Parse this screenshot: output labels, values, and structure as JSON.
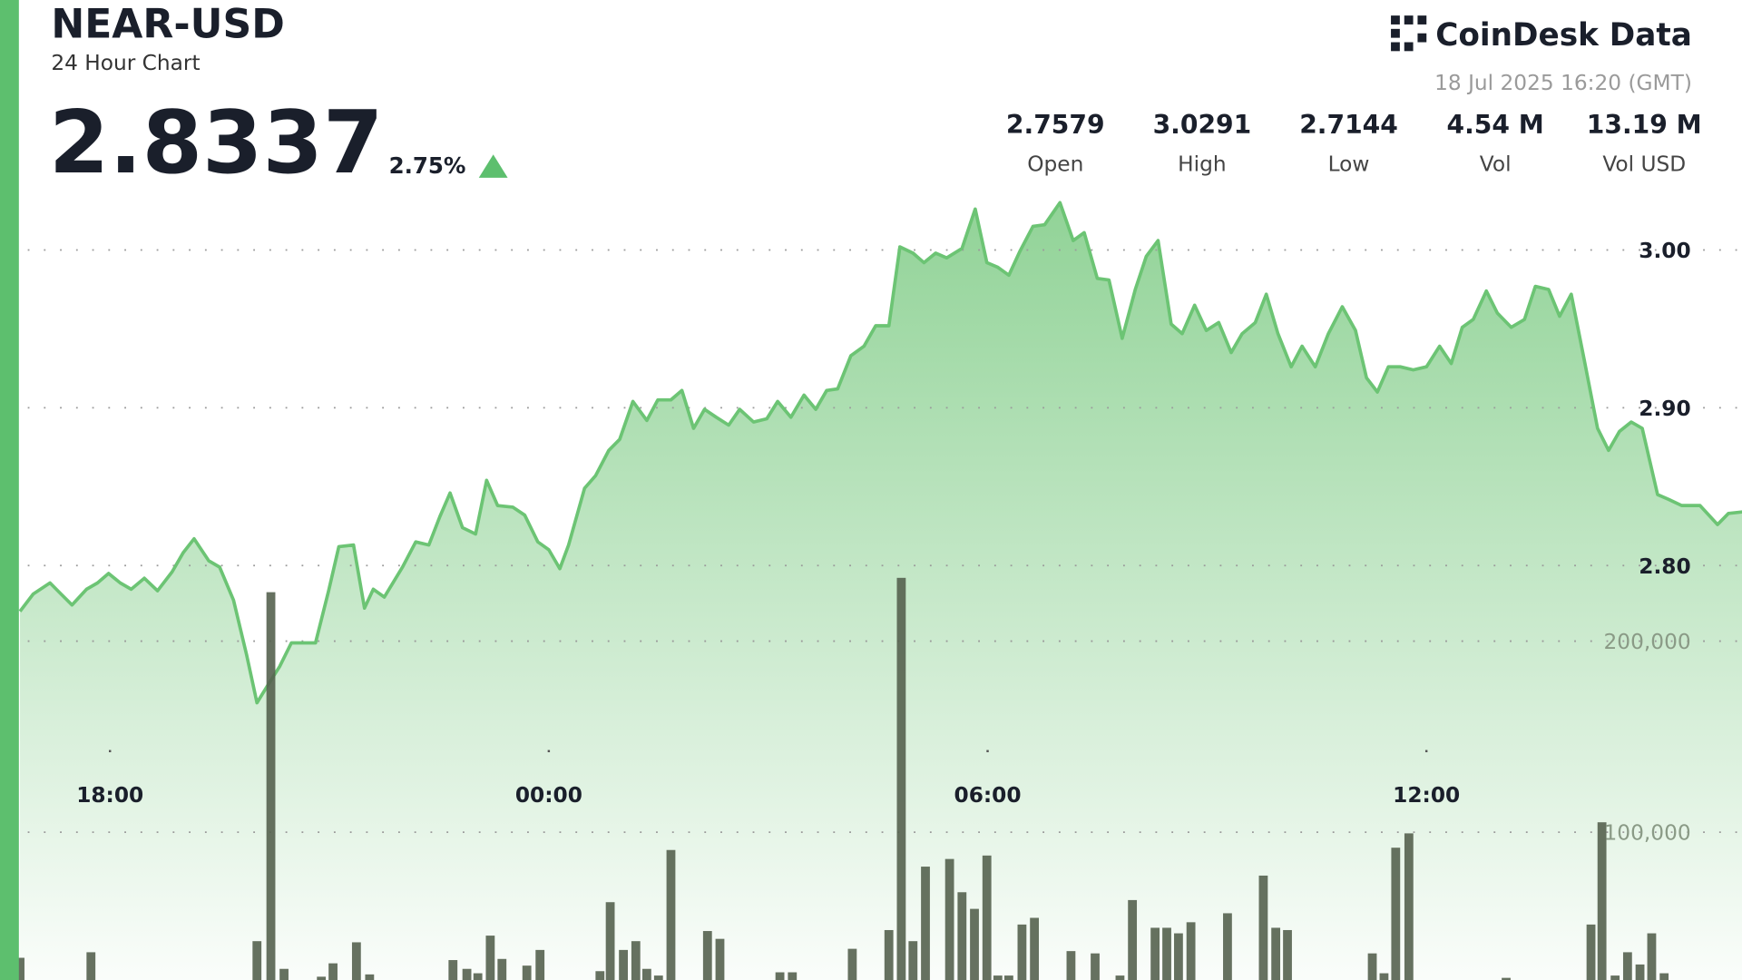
{
  "header": {
    "title": "NEAR-USD",
    "subtitle": "24 Hour Chart",
    "price": "2.8337",
    "change": "2.75%"
  },
  "brand": {
    "name": "CoinDesk Data",
    "timestamp": "18 Jul 2025 16:20 (GMT)"
  },
  "stats": [
    {
      "value": "2.7579",
      "label": "Open"
    },
    {
      "value": "3.0291",
      "label": "High"
    },
    {
      "value": "2.7144",
      "label": "Low"
    },
    {
      "value": "4.54 M",
      "label": "Vol"
    },
    {
      "value": "13.19 M",
      "label": "Vol USD"
    }
  ],
  "chart_data": [
    {
      "type": "area",
      "color": "#6cc474",
      "x": [
        16.77,
        16.95,
        17.18,
        17.33,
        17.48,
        17.68,
        17.83,
        17.98,
        18.14,
        18.29,
        18.47,
        18.65,
        18.85,
        19.0,
        19.15,
        19.35,
        19.5,
        19.69,
        19.87,
        20.01,
        20.17,
        20.32,
        20.48,
        20.81,
        20.99,
        21.13,
        21.33,
        21.48,
        21.6,
        21.75,
        22.0,
        22.18,
        22.36,
        22.51,
        22.65,
        22.82,
        23.0,
        23.15,
        23.3,
        23.51,
        23.67,
        23.85,
        24.0,
        24.15,
        24.27,
        24.49,
        24.64,
        24.82,
        24.97,
        25.15,
        25.34,
        25.49,
        25.67,
        25.82,
        25.98,
        26.13,
        26.29,
        26.46,
        26.61,
        26.8,
        26.98,
        27.13,
        27.31,
        27.49,
        27.65,
        27.8,
        27.95,
        28.13,
        28.31,
        28.47,
        28.65,
        28.8,
        28.98,
        29.13,
        29.29,
        29.44,
        29.65,
        29.83,
        29.99,
        30.14,
        30.29,
        30.44,
        30.62,
        30.78,
        30.99,
        31.17,
        31.32,
        31.5,
        31.66,
        31.84,
        32.02,
        32.17,
        32.33,
        32.51,
        32.66,
        32.83,
        32.99,
        33.16,
        33.33,
        33.48,
        33.66,
        33.81,
        33.97,
        34.15,
        34.3,
        34.48,
        34.66,
        34.85,
        35.03,
        35.18,
        35.33,
        35.48,
        35.64,
        35.82,
        36.0,
        36.18,
        36.34,
        36.49,
        36.64,
        36.82,
        36.97,
        37.16,
        37.34,
        37.49,
        37.67,
        37.82,
        37.98,
        38.16,
        38.34,
        38.49,
        38.64,
        38.8,
        38.95,
        39.16,
        39.31,
        39.49,
        39.74,
        39.98,
        40.13,
        40.32
      ],
      "values": [
        2.771,
        2.782,
        2.789,
        2.782,
        2.775,
        2.785,
        2.789,
        2.795,
        2.789,
        2.785,
        2.792,
        2.784,
        2.796,
        2.808,
        2.817,
        2.803,
        2.799,
        2.778,
        2.743,
        2.713,
        2.725,
        2.736,
        2.751,
        2.751,
        2.784,
        2.812,
        2.813,
        2.773,
        2.785,
        2.78,
        2.799,
        2.815,
        2.813,
        2.831,
        2.846,
        2.824,
        2.82,
        2.854,
        2.838,
        2.837,
        2.832,
        2.815,
        2.81,
        2.798,
        2.813,
        2.849,
        2.857,
        2.873,
        2.88,
        2.904,
        2.892,
        2.905,
        2.905,
        2.911,
        2.887,
        2.899,
        2.894,
        2.889,
        2.899,
        2.891,
        2.893,
        2.904,
        2.894,
        2.908,
        2.899,
        2.911,
        2.912,
        2.933,
        2.939,
        2.952,
        2.952,
        3.002,
        2.998,
        2.992,
        2.998,
        2.995,
        3.001,
        3.026,
        2.992,
        2.989,
        2.984,
        2.999,
        3.015,
        3.016,
        3.03,
        3.006,
        3.011,
        2.982,
        2.981,
        2.944,
        2.975,
        2.996,
        3.006,
        2.953,
        2.947,
        2.965,
        2.949,
        2.954,
        2.935,
        2.947,
        2.954,
        2.972,
        2.947,
        2.926,
        2.939,
        2.926,
        2.947,
        2.964,
        2.949,
        2.919,
        2.91,
        2.926,
        2.926,
        2.924,
        2.926,
        2.939,
        2.928,
        2.951,
        2.956,
        2.974,
        2.96,
        2.951,
        2.956,
        2.977,
        2.975,
        2.958,
        2.972,
        2.93,
        2.887,
        2.873,
        2.885,
        2.891,
        2.887,
        2.845,
        2.842,
        2.838,
        2.838,
        2.826,
        2.833,
        2.834
      ],
      "xlim": [
        16.75,
        40.33
      ],
      "xticks": [
        {
          "value": 18,
          "label": "18:00"
        },
        {
          "value": 24,
          "label": "00:00"
        },
        {
          "value": 30,
          "label": "06:00"
        },
        {
          "value": 36,
          "label": "12:00"
        }
      ],
      "ylim": [
        2.6,
        3.05
      ],
      "yticks": [
        {
          "value": 2.8,
          "label": "2.80"
        },
        {
          "value": 2.9,
          "label": "2.90"
        },
        {
          "value": 3,
          "label": "3.00"
        }
      ],
      "grid": true
    },
    {
      "type": "bar",
      "color": "#55624f",
      "x": [
        16.77,
        17.74,
        20.01,
        20.2,
        20.38,
        20.89,
        21.05,
        21.37,
        21.55,
        22.69,
        22.88,
        23.03,
        23.2,
        23.36,
        23.7,
        23.88,
        24.7,
        24.84,
        25.02,
        25.19,
        25.34,
        25.5,
        25.67,
        26.17,
        26.34,
        27.16,
        27.33,
        28.15,
        28.65,
        28.82,
        28.98,
        29.15,
        29.48,
        29.65,
        29.82,
        29.99,
        30.14,
        30.29,
        30.47,
        30.64,
        31.14,
        31.47,
        31.81,
        31.98,
        32.29,
        32.45,
        32.61,
        32.78,
        33.28,
        33.77,
        33.94,
        34.1,
        35.26,
        35.42,
        35.58,
        35.76,
        37.09,
        38.25,
        38.4,
        38.58,
        38.75,
        38.92,
        39.08,
        39.25
      ],
      "values": [
        34300,
        37200,
        43000,
        225600,
        28500,
        24400,
        31400,
        42400,
        25600,
        33100,
        28500,
        26200,
        45900,
        33700,
        30200,
        38400,
        27300,
        63400,
        38400,
        43000,
        28500,
        25000,
        90700,
        48300,
        44200,
        26700,
        26700,
        39000,
        48800,
        233100,
        43000,
        82000,
        86000,
        68600,
        59900,
        87800,
        25000,
        25000,
        51700,
        55200,
        37800,
        36600,
        25000,
        64500,
        50000,
        50000,
        47100,
        52900,
        57600,
        77300,
        50000,
        48800,
        36600,
        26200,
        91900,
        99400,
        23800,
        51700,
        105200,
        25000,
        37200,
        30800,
        47100,
        26200
      ],
      "xlim": [
        16.75,
        40.33
      ],
      "ylim": [
        0,
        250000
      ],
      "yticks": [
        {
          "value": 100000,
          "label": "100,000"
        },
        {
          "value": 200000,
          "label": "200,000"
        }
      ],
      "grid": true
    }
  ]
}
